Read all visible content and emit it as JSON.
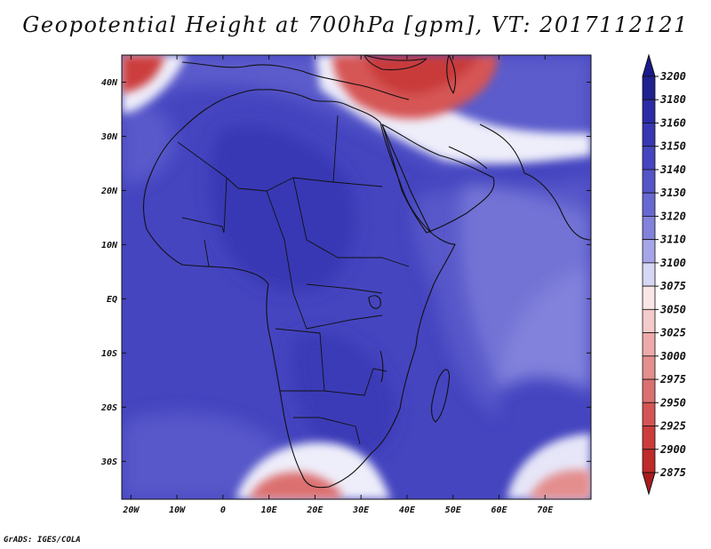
{
  "title": "Geopotential Height at 700hPa [gpm], VT: 2017112121",
  "credit": "GrADS: IGES/COLA",
  "map": {
    "lon_range": [
      -22,
      80
    ],
    "lat_range": [
      -37,
      45
    ],
    "lat_ticks": [
      {
        "value": 40,
        "label": "40N"
      },
      {
        "value": 30,
        "label": "30N"
      },
      {
        "value": 20,
        "label": "20N"
      },
      {
        "value": 10,
        "label": "10N"
      },
      {
        "value": 0,
        "label": "EQ"
      },
      {
        "value": -10,
        "label": "10S"
      },
      {
        "value": -20,
        "label": "20S"
      },
      {
        "value": -30,
        "label": "30S"
      }
    ],
    "lon_ticks": [
      {
        "value": -20,
        "label": "20W"
      },
      {
        "value": -10,
        "label": "10W"
      },
      {
        "value": 0,
        "label": "0"
      },
      {
        "value": 10,
        "label": "10E"
      },
      {
        "value": 20,
        "label": "20E"
      },
      {
        "value": 30,
        "label": "30E"
      },
      {
        "value": 40,
        "label": "40E"
      },
      {
        "value": 50,
        "label": "50E"
      },
      {
        "value": 60,
        "label": "60E"
      },
      {
        "value": 70,
        "label": "70E"
      }
    ]
  },
  "colorbar": {
    "levels": [
      {
        "label": "3200",
        "color": "#20208f"
      },
      {
        "label": "3180",
        "color": "#2b2ba6"
      },
      {
        "label": "3160",
        "color": "#3737b4"
      },
      {
        "label": "3150",
        "color": "#4545c0"
      },
      {
        "label": "3140",
        "color": "#5555c8"
      },
      {
        "label": "3130",
        "color": "#6868d2"
      },
      {
        "label": "3120",
        "color": "#8282dc"
      },
      {
        "label": "3110",
        "color": "#a5a5e8"
      },
      {
        "label": "3100",
        "color": "#d6d6f5"
      },
      {
        "label": "3075",
        "color": "#fae6e6"
      },
      {
        "label": "3050",
        "color": "#f5caca"
      },
      {
        "label": "3025",
        "color": "#eeaaaa"
      },
      {
        "label": "3000",
        "color": "#e48e8e"
      },
      {
        "label": "2975",
        "color": "#dc7070"
      },
      {
        "label": "2950",
        "color": "#d65454"
      },
      {
        "label": "2925",
        "color": "#cc3c3c"
      },
      {
        "label": "2900",
        "color": "#bf2a2a"
      },
      {
        "label": "2875",
        "color": "#a81c1c"
      }
    ],
    "top_arrow_color": "#1a1a8a",
    "bottom_arrow_color": "#a81c1c"
  },
  "field": {
    "background_color": "#4545c0",
    "regions": [
      {
        "name": "subtropical-ridge-sahara",
        "color": "#3737b4"
      },
      {
        "name": "indian-ocean-low",
        "color": "#8282dc"
      },
      {
        "name": "east-africa-band",
        "color": "#6868d2"
      },
      {
        "name": "mediterranean-low",
        "color": "#d65454"
      },
      {
        "name": "south-atlantic-trough",
        "color": "#dc7070"
      },
      {
        "name": "southern-indian-trough",
        "color": "#e48e8e"
      },
      {
        "name": "north-atlantic-low",
        "color": "#cc3c3c"
      }
    ]
  }
}
